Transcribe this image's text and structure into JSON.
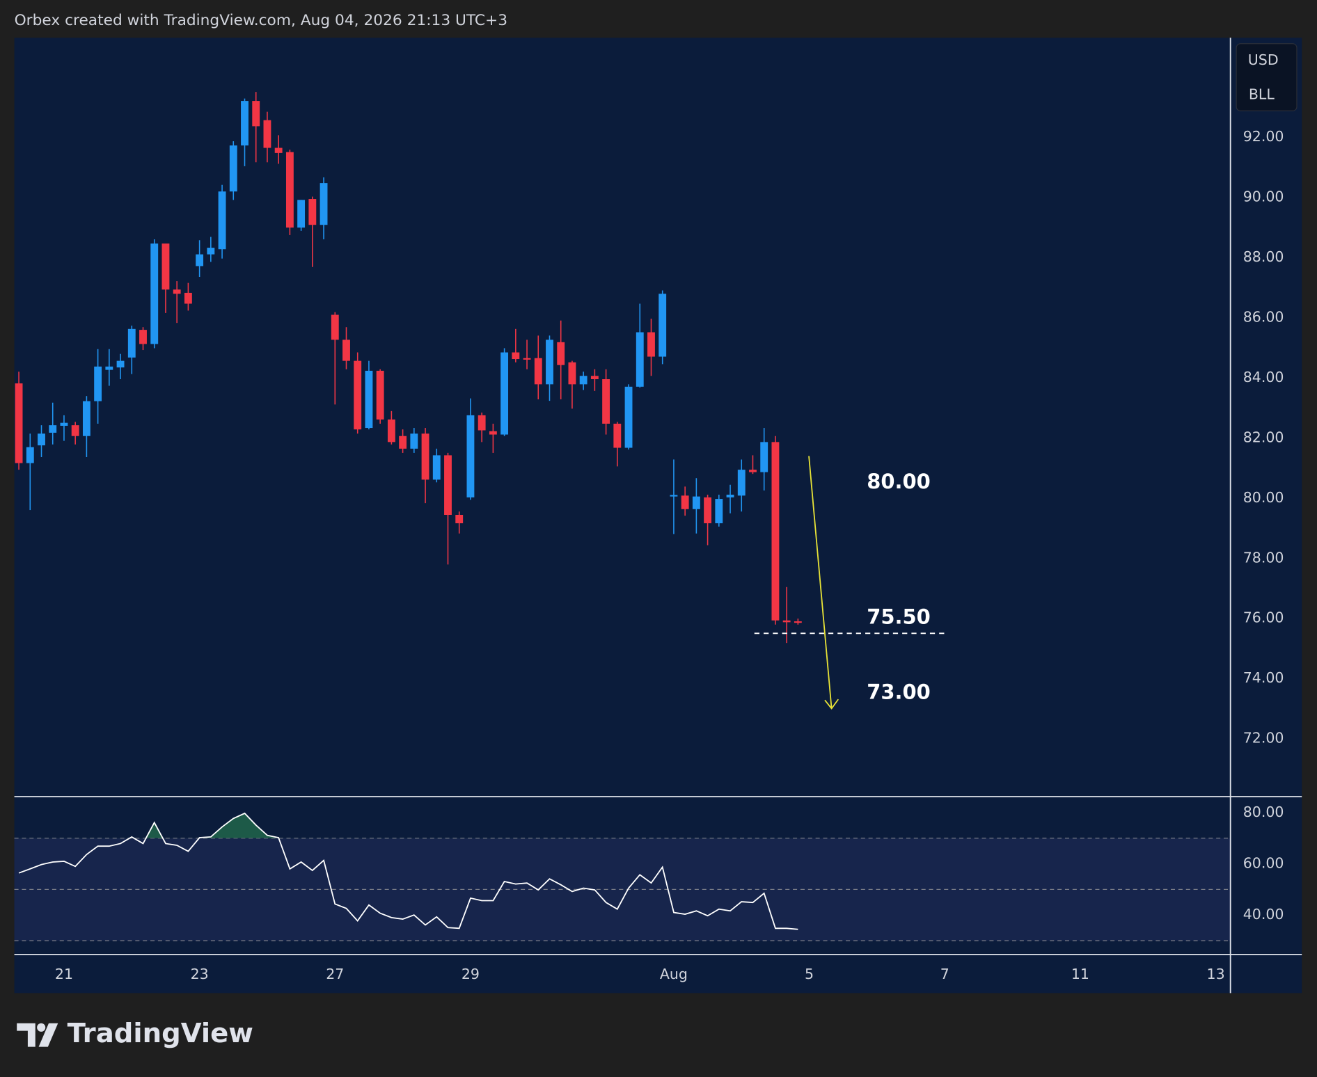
{
  "chart_data": {
    "type": "candlestick",
    "title": "Orbex created with TradingView.com, Aug 04, 2026 21:13 UTC+3",
    "currency_labels": [
      "USD",
      "BLL"
    ],
    "up_color": "#2196f3",
    "down_color": "#f23645",
    "open": [
      83.81,
      81.16,
      81.75,
      82.17,
      82.4,
      82.42,
      82.06,
      83.22,
      84.26,
      84.34,
      84.67,
      85.59,
      85.12,
      88.46,
      86.93,
      86.82,
      87.71,
      88.1,
      88.27,
      90.19,
      91.72,
      93.2,
      92.56,
      91.64,
      91.5,
      88.99,
      89.94,
      89.08,
      86.09,
      85.26,
      84.56,
      82.33,
      84.23,
      82.61,
      82.06,
      81.64,
      82.14,
      80.61,
      81.42,
      79.44,
      80.02,
      82.75,
      82.22,
      82.11,
      84.84,
      84.65,
      84.65,
      83.78,
      85.18,
      84.51,
      83.78,
      84.06,
      83.95,
      82.47,
      81.67,
      83.7,
      85.51,
      84.7,
      80.05,
      80.08,
      79.63,
      80.02,
      79.16,
      80.02,
      80.08,
      80.94,
      80.86,
      81.86,
      75.93,
      75.9
    ],
    "high": [
      84.2,
      82.14,
      82.42,
      83.17,
      82.75,
      82.53,
      83.39,
      84.95,
      84.95,
      84.79,
      85.73,
      85.68,
      88.6,
      88.46,
      87.21,
      87.15,
      88.57,
      88.68,
      90.41,
      91.86,
      93.28,
      93.5,
      92.84,
      92.06,
      91.58,
      89.91,
      90.02,
      90.66,
      86.18,
      85.68,
      84.84,
      84.56,
      84.28,
      82.89,
      82.28,
      82.33,
      82.33,
      81.64,
      81.5,
      79.55,
      83.31,
      82.84,
      82.47,
      84.98,
      85.62,
      85.26,
      85.4,
      85.4,
      85.9,
      84.56,
      84.2,
      84.28,
      84.28,
      82.53,
      83.78,
      86.46,
      85.96,
      86.9,
      81.28,
      80.38,
      80.66,
      80.11,
      80.11,
      80.44,
      81.28,
      81.42,
      82.33,
      82.06,
      77.04,
      75.99
    ],
    "low": [
      80.94,
      79.6,
      81.36,
      81.78,
      81.9,
      81.78,
      81.36,
      82.47,
      83.73,
      83.95,
      84.12,
      84.92,
      84.98,
      86.15,
      85.82,
      86.23,
      87.35,
      87.85,
      87.96,
      89.91,
      91.03,
      91.16,
      91.16,
      91.11,
      88.74,
      88.88,
      87.68,
      88.6,
      83.11,
      84.28,
      82.14,
      82.28,
      82.47,
      81.78,
      81.5,
      81.5,
      79.83,
      80.52,
      77.79,
      78.82,
      79.94,
      81.86,
      81.5,
      82.06,
      84.51,
      84.28,
      83.28,
      83.23,
      83.28,
      82.97,
      83.59,
      83.56,
      82.11,
      81.05,
      81.61,
      83.67,
      84.06,
      84.45,
      78.8,
      79.41,
      78.82,
      78.43,
      79.05,
      79.49,
      79.55,
      80.8,
      80.25,
      75.79,
      75.18,
      75.79
    ],
    "close": [
      81.16,
      81.69,
      82.14,
      82.42,
      82.5,
      82.06,
      83.22,
      84.37,
      84.37,
      84.56,
      85.62,
      85.12,
      88.46,
      86.93,
      86.79,
      86.46,
      88.1,
      88.32,
      90.19,
      91.72,
      93.2,
      92.36,
      91.64,
      91.47,
      88.99,
      89.91,
      89.08,
      90.47,
      85.26,
      84.56,
      82.28,
      84.23,
      82.61,
      81.86,
      81.64,
      82.14,
      80.61,
      81.42,
      79.44,
      79.16,
      82.75,
      82.25,
      82.11,
      84.84,
      84.62,
      84.6,
      83.78,
      85.26,
      84.42,
      83.78,
      84.06,
      83.95,
      82.47,
      81.67,
      83.7,
      85.51,
      84.7,
      86.79,
      80.1,
      79.63,
      80.05,
      79.16,
      79.97,
      80.11,
      80.94,
      80.86,
      81.86,
      75.93,
      75.87,
      75.85
    ],
    "xlim": [
      -0.4,
      107.3
    ],
    "xticks": [
      {
        "value": 4,
        "label": "21"
      },
      {
        "value": 16,
        "label": "23"
      },
      {
        "value": 28,
        "label": "27"
      },
      {
        "value": 40,
        "label": "29"
      },
      {
        "value": 58,
        "label": "Aug"
      },
      {
        "value": 70,
        "label": "5"
      },
      {
        "value": 82,
        "label": "7"
      },
      {
        "value": 94,
        "label": "11"
      },
      {
        "value": 106,
        "label": "13"
      }
    ],
    "ylim": [
      70.1,
      95.3
    ],
    "yticks": [
      {
        "value": 92,
        "label": "92.00"
      },
      {
        "value": 90,
        "label": "90.00"
      },
      {
        "value": 88,
        "label": "88.00"
      },
      {
        "value": 86,
        "label": "86.00"
      },
      {
        "value": 84,
        "label": "84.00"
      },
      {
        "value": 82,
        "label": "82.00"
      },
      {
        "value": 80,
        "label": "80.00"
      },
      {
        "value": 78,
        "label": "78.00"
      },
      {
        "value": 76,
        "label": "76.00"
      },
      {
        "value": 74,
        "label": "74.00"
      },
      {
        "value": 72,
        "label": "72.00"
      }
    ],
    "annotations": [
      {
        "value": 80,
        "label": "80.00"
      },
      {
        "value": 75.5,
        "label": "75.50"
      },
      {
        "value": 73,
        "label": "73.00"
      }
    ],
    "arrow_color": "#e8e337",
    "rsi": {
      "color": "#ffffff",
      "band_color": "#17254c",
      "overbought_color": "#1d5a48",
      "values": [
        56.4,
        58.0,
        59.7,
        60.7,
        61.0,
        59.0,
        63.6,
        66.9,
        66.9,
        67.9,
        70.5,
        67.9,
        76.1,
        67.9,
        67.2,
        64.9,
        70.2,
        70.5,
        74.4,
        77.7,
        79.7,
        75.1,
        71.1,
        70.2,
        58.0,
        60.7,
        57.4,
        61.3,
        44.3,
        42.6,
        37.7,
        43.9,
        40.7,
        39.0,
        38.4,
        40.0,
        36.1,
        39.3,
        35.1,
        34.8,
        46.6,
        45.6,
        45.6,
        53.1,
        52.1,
        52.5,
        49.8,
        54.1,
        51.8,
        49.2,
        50.5,
        49.8,
        44.9,
        42.3,
        50.5,
        55.7,
        52.5,
        58.7,
        41.0,
        40.3,
        41.6,
        39.7,
        42.3,
        41.6,
        45.2,
        44.9,
        48.5,
        34.8,
        34.8,
        34.4
      ],
      "ylim": [
        24.6,
        85.9
      ],
      "yticks": [
        {
          "value": 80,
          "label": "80.00"
        },
        {
          "value": 60,
          "label": "60.00"
        },
        {
          "value": 40,
          "label": "40.00"
        }
      ],
      "levels": [
        70,
        50,
        30
      ]
    }
  },
  "brand": "TradingView"
}
